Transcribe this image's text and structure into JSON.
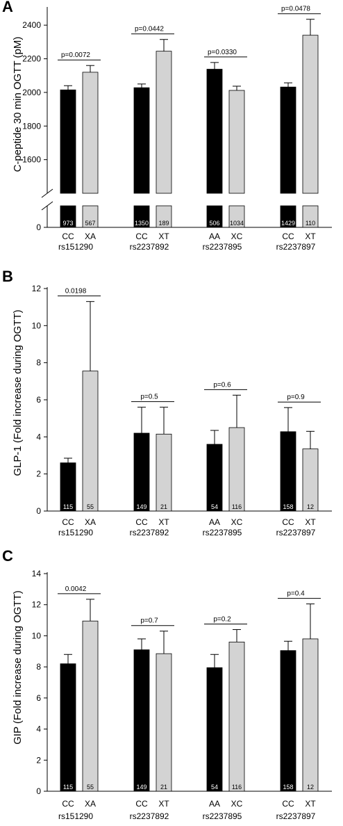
{
  "colors": {
    "dark_bar": "#000000",
    "light_bar": "#d3d3d3",
    "axis": "#000000"
  },
  "chart_data": [
    {
      "panel_label": "A",
      "type": "bar",
      "ylabel": "C-peptide 30 min OGTT (pM)",
      "ylim": [
        1400,
        2500
      ],
      "yticks": [
        "0",
        "1600",
        "1800",
        "2000",
        "2200",
        "2400"
      ],
      "axis_break": true,
      "groups": [
        {
          "snp": "rs151290",
          "p": "p=0.0072",
          "bars": [
            {
              "genotype": "CC",
              "value": 2015,
              "err": 25,
              "n": "973",
              "color": "dark"
            },
            {
              "genotype": "XA",
              "value": 2120,
              "err": 40,
              "n": "567",
              "color": "light"
            }
          ]
        },
        {
          "snp": "rs2237892",
          "p": "p=0.0442",
          "bars": [
            {
              "genotype": "CC",
              "value": 2028,
              "err": 22,
              "n": "1350",
              "color": "dark"
            },
            {
              "genotype": "XT",
              "value": 2245,
              "err": 70,
              "n": "189",
              "color": "light"
            }
          ]
        },
        {
          "snp": "rs2237895",
          "p": "p=0.0330",
          "bars": [
            {
              "genotype": "AA",
              "value": 2138,
              "err": 40,
              "n": "506",
              "color": "dark"
            },
            {
              "genotype": "XC",
              "value": 2012,
              "err": 25,
              "n": "1034",
              "color": "light"
            }
          ]
        },
        {
          "snp": "rs2237897",
          "p": "p=0.0478",
          "bars": [
            {
              "genotype": "CC",
              "value": 2032,
              "err": 25,
              "n": "1429",
              "color": "dark"
            },
            {
              "genotype": "XT",
              "value": 2340,
              "err": 95,
              "n": "110",
              "color": "light"
            }
          ]
        }
      ]
    },
    {
      "panel_label": "B",
      "type": "bar",
      "ylabel": "GLP-1 (Fold increase during OGTT)",
      "ylim": [
        0,
        12
      ],
      "yticks": [
        "0",
        "2",
        "4",
        "6",
        "8",
        "10",
        "12"
      ],
      "axis_break": false,
      "groups": [
        {
          "snp": "rs151290",
          "p": "0.0198",
          "bars": [
            {
              "genotype": "CC",
              "value": 2.6,
              "err": 0.25,
              "n": "115",
              "color": "dark"
            },
            {
              "genotype": "XA",
              "value": 7.55,
              "err": 3.75,
              "n": "55",
              "color": "light"
            }
          ]
        },
        {
          "snp": "rs2237892",
          "p": "p=0.5",
          "bars": [
            {
              "genotype": "CC",
              "value": 4.2,
              "err": 1.4,
              "n": "149",
              "color": "dark"
            },
            {
              "genotype": "XT",
              "value": 4.15,
              "err": 1.45,
              "n": "21",
              "color": "light"
            }
          ]
        },
        {
          "snp": "rs2237895",
          "p": "p=0.6",
          "bars": [
            {
              "genotype": "AA",
              "value": 3.6,
              "err": 0.75,
              "n": "54",
              "color": "dark"
            },
            {
              "genotype": "XC",
              "value": 4.5,
              "err": 1.75,
              "n": "116",
              "color": "light"
            }
          ]
        },
        {
          "snp": "rs2237897",
          "p": "p=0.9",
          "bars": [
            {
              "genotype": "CC",
              "value": 4.28,
              "err": 1.3,
              "n": "158",
              "color": "dark"
            },
            {
              "genotype": "XT",
              "value": 3.35,
              "err": 0.95,
              "n": "12",
              "color": "light"
            }
          ]
        }
      ]
    },
    {
      "panel_label": "C",
      "type": "bar",
      "ylabel": "GIP (Fold increase during OGTT)",
      "ylim": [
        0,
        14
      ],
      "yticks": [
        "0",
        "2",
        "4",
        "6",
        "8",
        "10",
        "12",
        "14"
      ],
      "axis_break": false,
      "groups": [
        {
          "snp": "rs151290",
          "p": "0.0042",
          "bars": [
            {
              "genotype": "CC",
              "value": 8.2,
              "err": 0.6,
              "n": "115",
              "color": "dark"
            },
            {
              "genotype": "XA",
              "value": 10.95,
              "err": 1.4,
              "n": "55",
              "color": "light"
            }
          ]
        },
        {
          "snp": "rs2237892",
          "p": "p=0.7",
          "bars": [
            {
              "genotype": "CC",
              "value": 9.1,
              "err": 0.7,
              "n": "149",
              "color": "dark"
            },
            {
              "genotype": "XT",
              "value": 8.85,
              "err": 1.45,
              "n": "21",
              "color": "light"
            }
          ]
        },
        {
          "snp": "rs2237895",
          "p": "p=0.2",
          "bars": [
            {
              "genotype": "AA",
              "value": 7.95,
              "err": 0.85,
              "n": "54",
              "color": "dark"
            },
            {
              "genotype": "XC",
              "value": 9.6,
              "err": 0.8,
              "n": "116",
              "color": "light"
            }
          ]
        },
        {
          "snp": "rs2237897",
          "p": "p=0.4",
          "bars": [
            {
              "genotype": "CC",
              "value": 9.05,
              "err": 0.6,
              "n": "158",
              "color": "dark"
            },
            {
              "genotype": "XT",
              "value": 9.8,
              "err": 2.25,
              "n": "12",
              "color": "light"
            }
          ]
        }
      ]
    }
  ]
}
